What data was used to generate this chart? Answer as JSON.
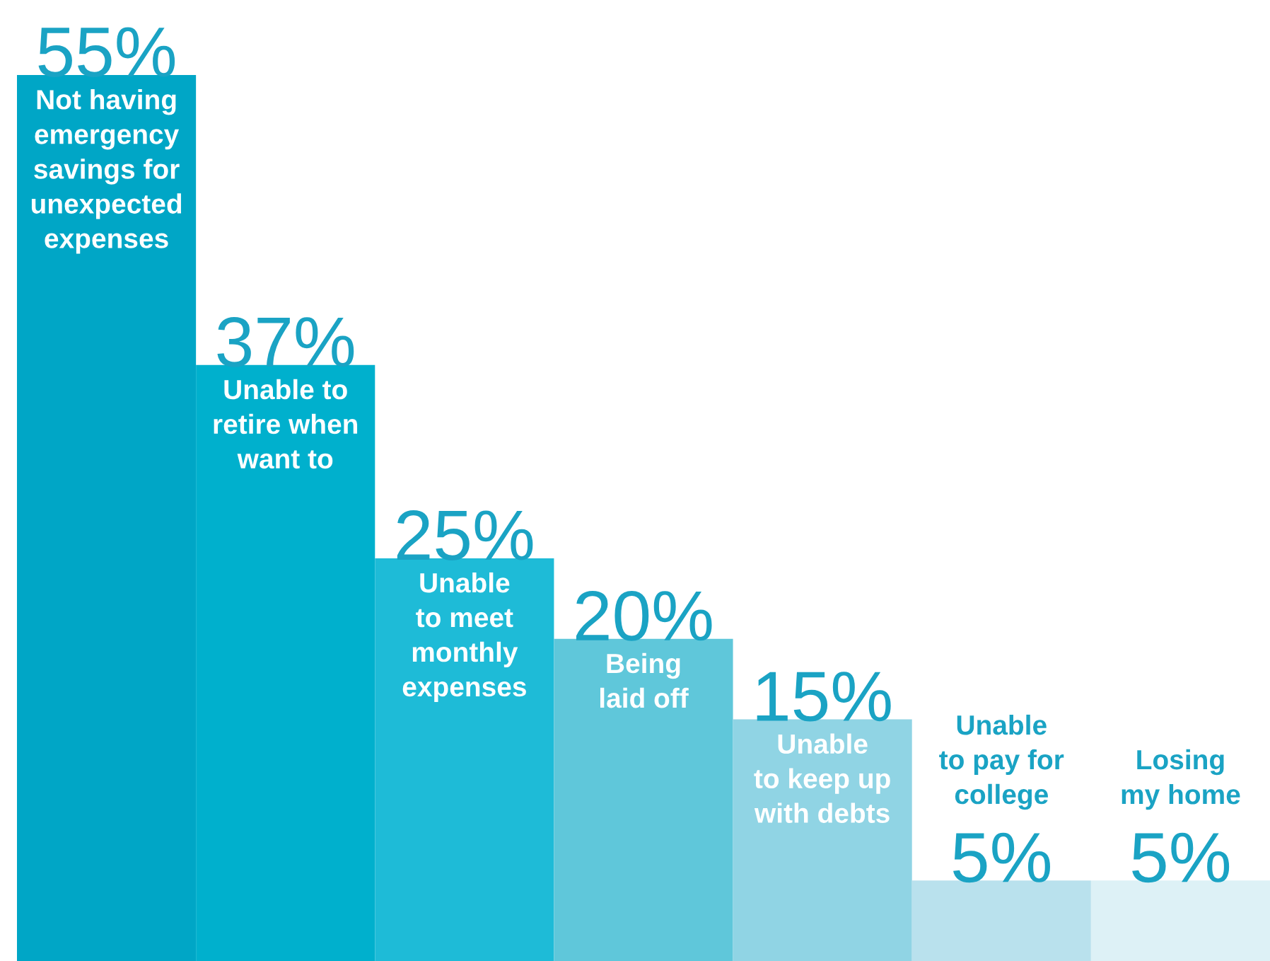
{
  "chart_data": {
    "type": "bar",
    "categories": [
      "Not having\nemergency\nsavings for\nunexpected\nexpenses",
      "Unable to\nretire when\nwant to",
      "Unable\nto meet\nmonthly\nexpenses",
      "Being\nlaid off",
      "Unable\nto keep up\nwith debts",
      "Unable\nto pay for\ncollege",
      "Losing\nmy home"
    ],
    "values": [
      55,
      37,
      25,
      20,
      15,
      5,
      5
    ],
    "value_labels": [
      "55%",
      "37%",
      "25%",
      "20%",
      "15%",
      "5%",
      "5%"
    ],
    "colors": [
      "#00a6c6",
      "#00b0cd",
      "#1ebbd7",
      "#5fc7da",
      "#90d4e4",
      "#b9e1ed",
      "#ddf1f6"
    ],
    "data_labels": false
  }
}
